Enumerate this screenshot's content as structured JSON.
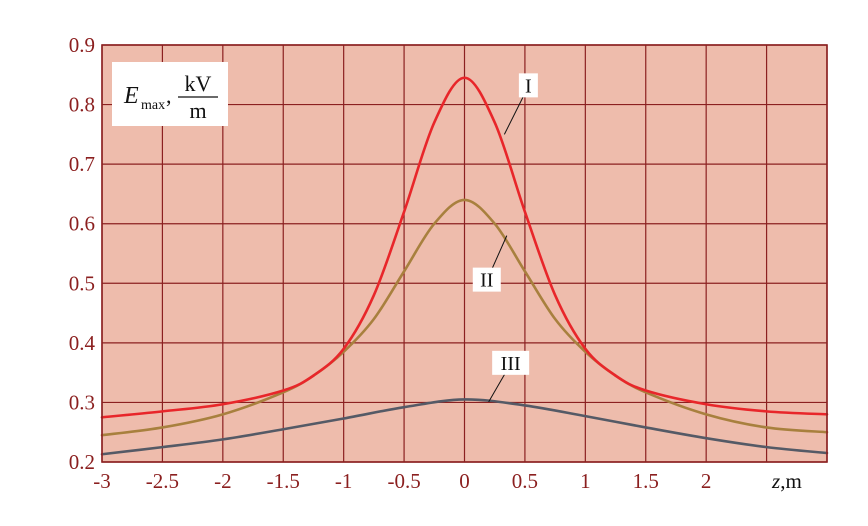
{
  "chart_data": {
    "type": "line",
    "xlabel_var": "z",
    "xlabel_unit": ",m",
    "ylabel_var": "E",
    "ylabel_sub": "max",
    "ylabel_unit_num": "kV",
    "ylabel_unit_den": "m",
    "xlim": [
      -3,
      3
    ],
    "ylim": [
      0.2,
      0.9
    ],
    "xticks": [
      "-3",
      "-2.5",
      "-2",
      "-1.5",
      "-1",
      "-0.5",
      "0",
      "0.5",
      "1",
      "1.5",
      "2"
    ],
    "xtick_values": [
      -3,
      -2.5,
      -2,
      -1.5,
      -1,
      -0.5,
      0,
      0.5,
      1,
      1.5,
      2
    ],
    "yticks": [
      "0.2",
      "0.3",
      "0.4",
      "0.5",
      "0.6",
      "0.7",
      "0.8",
      "0.9"
    ],
    "ytick_values": [
      0.2,
      0.3,
      0.4,
      0.5,
      0.6,
      0.7,
      0.8,
      0.9
    ],
    "grid": true,
    "colors": {
      "plot_bg": "#eebcac",
      "grid": "#8b2020",
      "tick_text": "#8b1f1f",
      "curve_I": "#e8262a",
      "curve_II": "#a8803e",
      "curve_III": "#555a66"
    },
    "series": [
      {
        "name": "I",
        "color": "#e8262a",
        "x": [
          -3,
          -2.5,
          -2,
          -1.5,
          -1.25,
          -1,
          -0.75,
          -0.5,
          -0.25,
          0,
          0.25,
          0.5,
          0.75,
          1,
          1.25,
          1.5,
          2,
          2.5,
          3
        ],
        "y": [
          0.275,
          0.285,
          0.297,
          0.32,
          0.345,
          0.39,
          0.48,
          0.62,
          0.77,
          0.845,
          0.77,
          0.62,
          0.48,
          0.39,
          0.345,
          0.32,
          0.297,
          0.285,
          0.28
        ]
      },
      {
        "name": "II",
        "color": "#a8803e",
        "x": [
          -3,
          -2.5,
          -2,
          -1.5,
          -1.25,
          -1,
          -0.75,
          -0.5,
          -0.25,
          0,
          0.25,
          0.5,
          0.75,
          1,
          1.25,
          1.5,
          2,
          2.5,
          3
        ],
        "y": [
          0.245,
          0.258,
          0.28,
          0.317,
          0.345,
          0.385,
          0.44,
          0.52,
          0.6,
          0.64,
          0.6,
          0.52,
          0.44,
          0.385,
          0.345,
          0.317,
          0.28,
          0.258,
          0.25
        ]
      },
      {
        "name": "III",
        "color": "#555a66",
        "x": [
          -3,
          -2.5,
          -2,
          -1.5,
          -1,
          -0.5,
          0,
          0.5,
          1,
          1.5,
          2,
          2.5,
          3
        ],
        "y": [
          0.213,
          0.225,
          0.238,
          0.255,
          0.273,
          0.292,
          0.305,
          0.295,
          0.277,
          0.258,
          0.24,
          0.225,
          0.215
        ]
      }
    ]
  }
}
